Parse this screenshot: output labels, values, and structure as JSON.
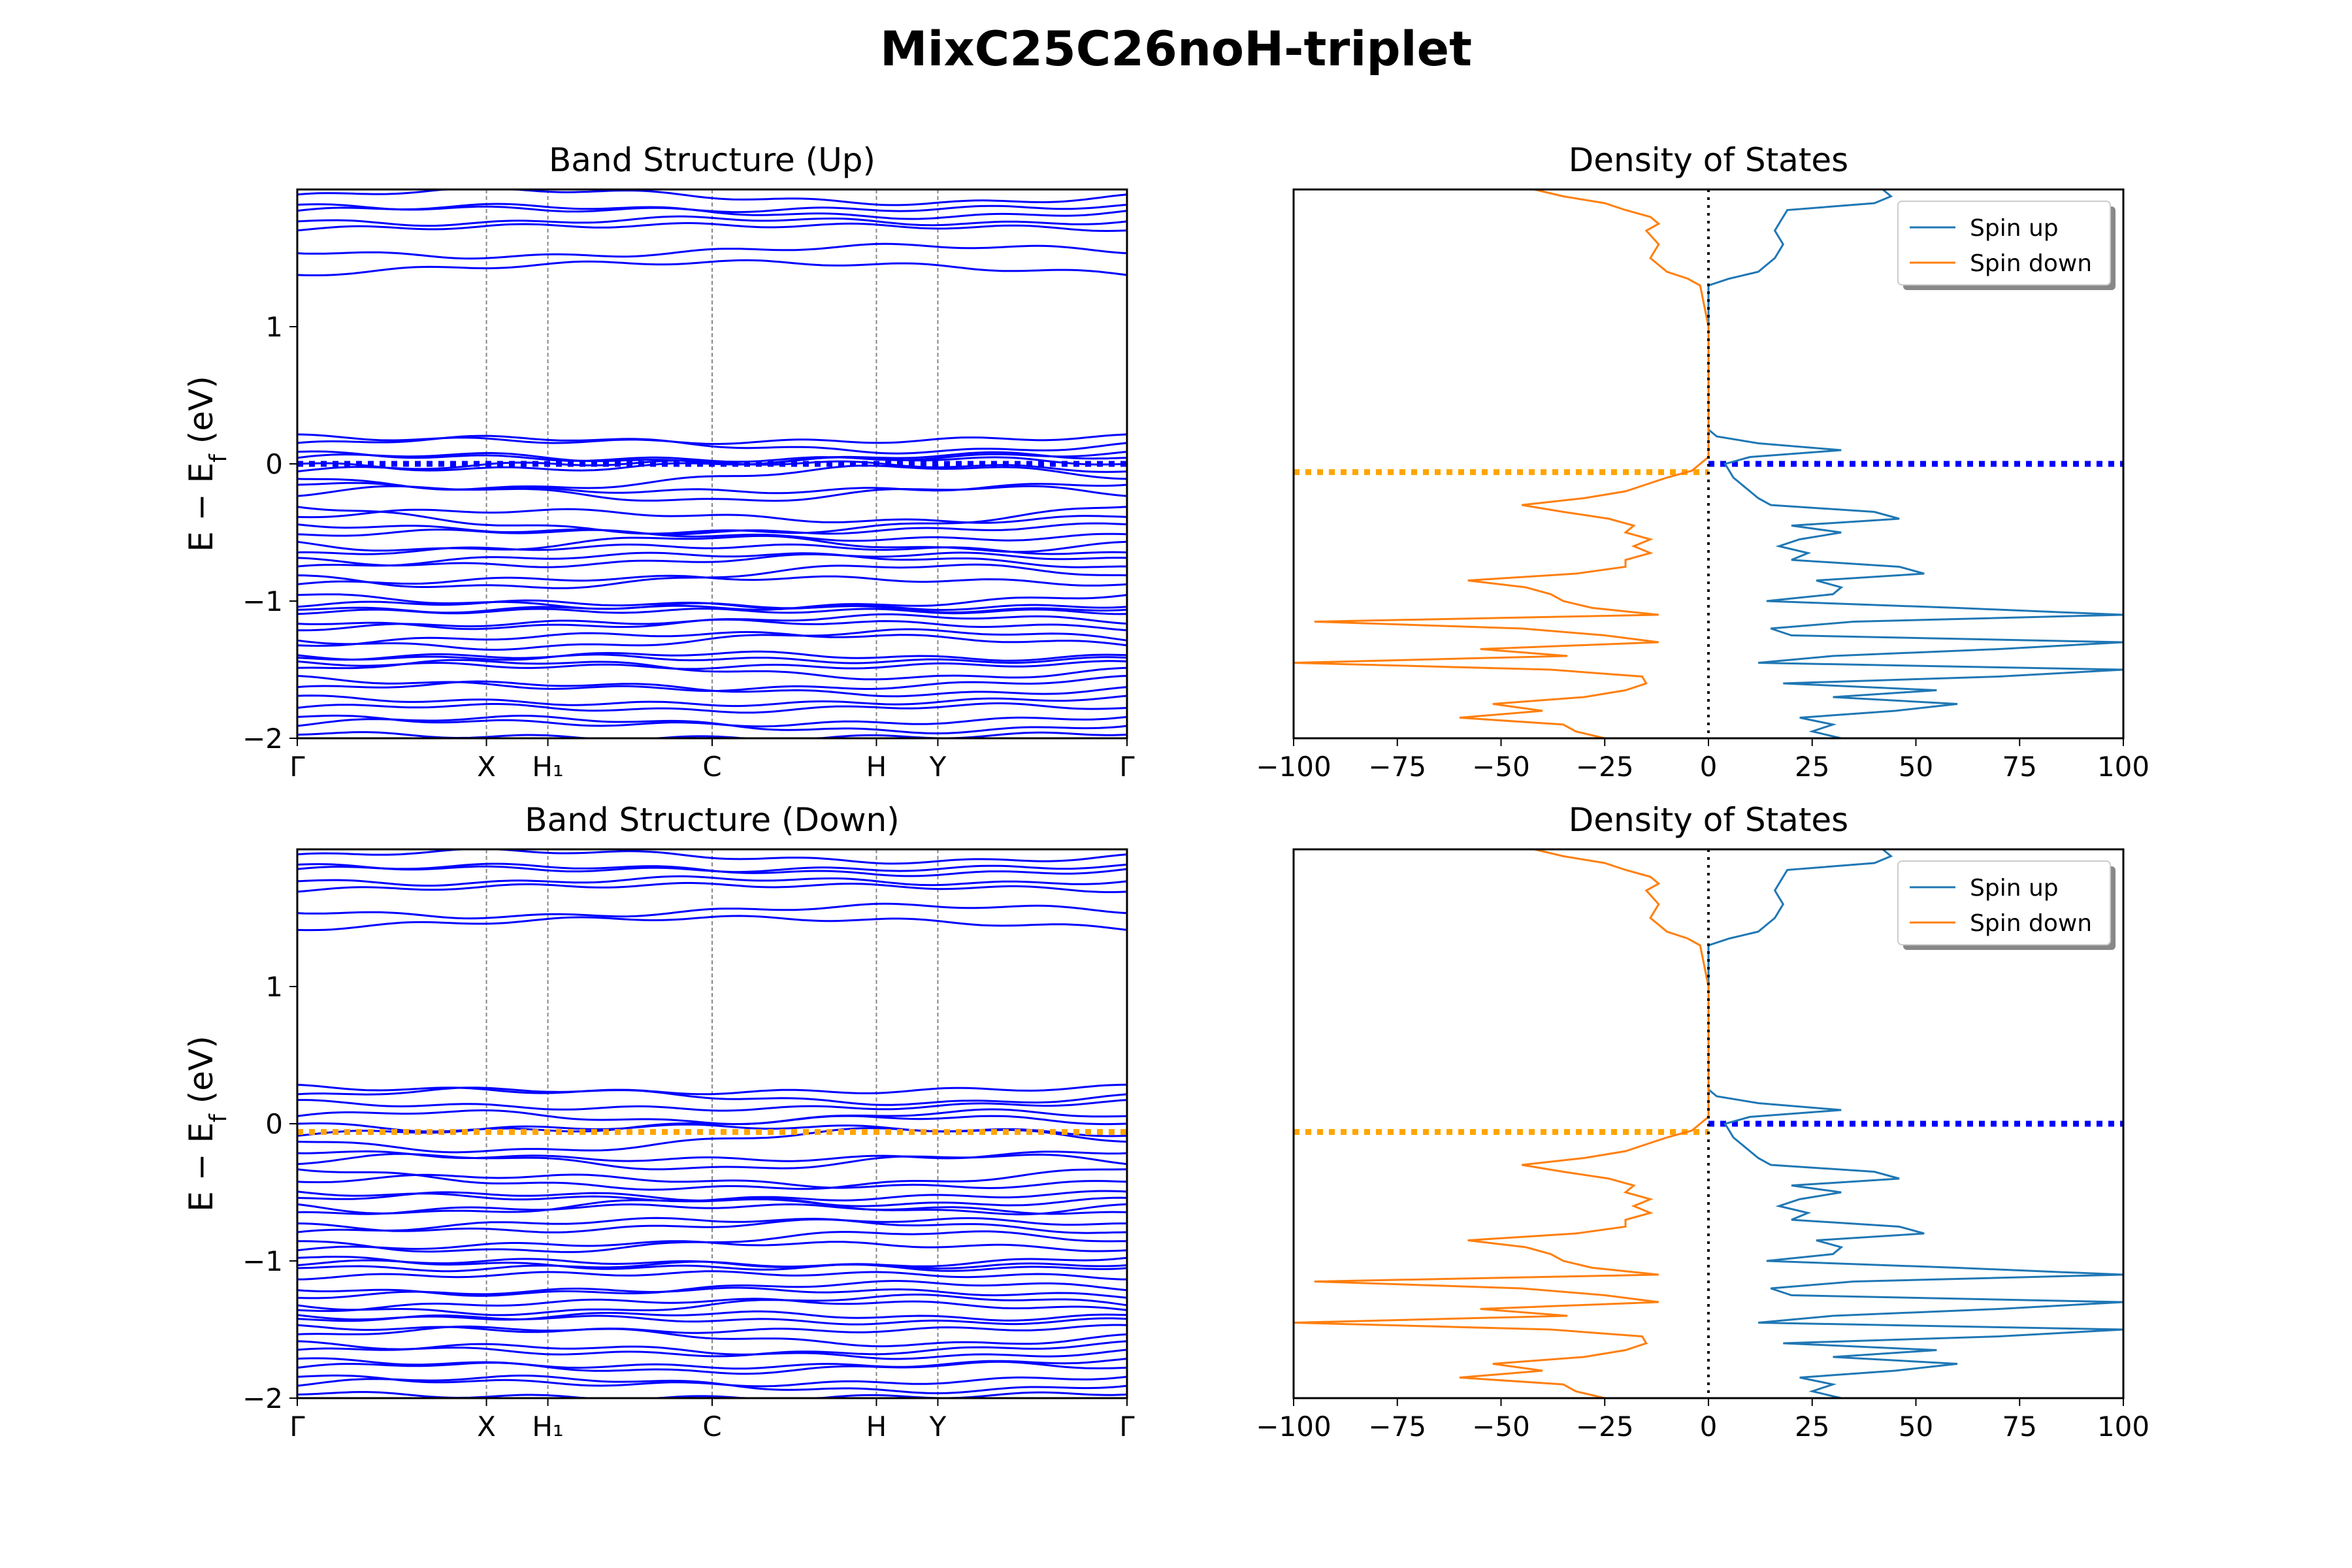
{
  "figure_title": "MixC25C26noH-triplet",
  "colors": {
    "band": "#0000ff",
    "spin_up": "#1f77b4",
    "spin_down": "#ff7f0e",
    "fermi_up": "#0000ff",
    "fermi_down": "#ffa500"
  },
  "chart_data": [
    {
      "type": "line",
      "title": "Band Structure (Up)",
      "ylabel": "E − E_f (eV)",
      "ylim": [
        -2,
        2
      ],
      "yticks": [
        "−2",
        "−1",
        "0",
        "1"
      ],
      "kpoints": [
        "Γ",
        "X",
        "H₁",
        "C",
        "H",
        "Y",
        "Γ"
      ],
      "kpoint_positions": [
        0,
        0.228,
        0.302,
        0.5,
        0.698,
        0.772,
        1
      ],
      "fermi_level": 0.0,
      "fermi_color": "blue",
      "bands": [
        {
          "e0": 1.38,
          "d": 0.09,
          "p": 1
        },
        {
          "e0": 1.55,
          "d": -0.04,
          "p": 2
        },
        {
          "e0": 1.71,
          "d": 0.03,
          "p": 1
        },
        {
          "e0": 1.77,
          "d": -0.02,
          "p": 3
        },
        {
          "e0": 1.84,
          "d": 0.04,
          "p": 2
        },
        {
          "e0": 1.88,
          "d": -0.03,
          "p": 1
        },
        {
          "e0": 1.95,
          "d": 0.05,
          "p": 2
        },
        {
          "e0": 0.2,
          "d": -0.04,
          "p": 1
        },
        {
          "e0": 0.14,
          "d": 0.05,
          "p": 2
        },
        {
          "e0": 0.08,
          "d": -0.05,
          "p": 1
        },
        {
          "e0": 0.04,
          "d": 0.03,
          "p": 3
        },
        {
          "e0": 0.0,
          "d": -0.04,
          "p": 2
        },
        {
          "e0": -0.05,
          "d": 0.06,
          "p": 1
        },
        {
          "e0": -0.1,
          "d": -0.08,
          "p": 2
        },
        {
          "e0": -0.14,
          "d": -0.06,
          "p": 1
        },
        {
          "e0": -0.22,
          "d": 0.05,
          "p": 3
        },
        {
          "e0": -0.3,
          "d": -0.2,
          "p": 1
        },
        {
          "e0": -0.38,
          "d": 0.04,
          "p": 2
        },
        {
          "e0": -0.44,
          "d": -0.06,
          "p": 1
        },
        {
          "e0": -0.52,
          "d": 0.03,
          "p": 2
        },
        {
          "e0": -0.58,
          "d": -0.05,
          "p": 3
        },
        {
          "e0": -0.66,
          "d": 0.06,
          "p": 1
        },
        {
          "e0": -0.7,
          "d": -0.04,
          "p": 2
        },
        {
          "e0": -0.76,
          "d": 0.1,
          "p": 1
        },
        {
          "e0": -0.82,
          "d": -0.08,
          "p": 2
        },
        {
          "e0": -0.88,
          "d": 0.05,
          "p": 1
        },
        {
          "e0": -0.95,
          "d": -0.1,
          "p": 1
        },
        {
          "e0": -1.03,
          "d": 0.02,
          "p": 2
        },
        {
          "e0": -1.05,
          "d": -0.02,
          "p": 3
        },
        {
          "e0": -1.08,
          "d": 0.01,
          "p": 1
        },
        {
          "e0": -1.15,
          "d": -0.04,
          "p": 2
        },
        {
          "e0": -1.2,
          "d": 0.05,
          "p": 1
        },
        {
          "e0": -1.28,
          "d": -0.06,
          "p": 2
        },
        {
          "e0": -1.32,
          "d": 0.08,
          "p": 1
        },
        {
          "e0": -1.4,
          "d": -0.02,
          "p": 3
        },
        {
          "e0": -1.42,
          "d": 0.02,
          "p": 2
        },
        {
          "e0": -1.45,
          "d": -0.03,
          "p": 1
        },
        {
          "e0": -1.5,
          "d": 0.06,
          "p": 2
        },
        {
          "e0": -1.56,
          "d": -0.08,
          "p": 1
        },
        {
          "e0": -1.64,
          "d": 0.04,
          "p": 2
        },
        {
          "e0": -1.7,
          "d": -0.05,
          "p": 1
        },
        {
          "e0": -1.78,
          "d": 0.02,
          "p": 3
        },
        {
          "e0": -1.84,
          "d": -0.06,
          "p": 1
        },
        {
          "e0": -1.9,
          "d": 0.05,
          "p": 2
        },
        {
          "e0": -1.96,
          "d": -0.04,
          "p": 1
        }
      ]
    },
    {
      "type": "line",
      "title": "Density of States",
      "xlim": [
        -100,
        100
      ],
      "ylim": [
        -2,
        2
      ],
      "xticks": [
        "−100",
        "−75",
        "−50",
        "−25",
        "0",
        "25",
        "50",
        "75",
        "100"
      ],
      "legend": {
        "location": "top-right",
        "entries": [
          "Spin up",
          "Spin down"
        ]
      },
      "fermi_up": 0.0,
      "fermi_down": -0.06,
      "series": [
        {
          "name": "Spin up",
          "energy": [
            -2.0,
            -1.95,
            -1.9,
            -1.85,
            -1.8,
            -1.75,
            -1.7,
            -1.65,
            -1.6,
            -1.55,
            -1.5,
            -1.45,
            -1.4,
            -1.35,
            -1.3,
            -1.25,
            -1.2,
            -1.15,
            -1.1,
            -1.05,
            -1.0,
            -0.95,
            -0.9,
            -0.85,
            -0.8,
            -0.75,
            -0.7,
            -0.65,
            -0.6,
            -0.55,
            -0.5,
            -0.45,
            -0.4,
            -0.35,
            -0.3,
            -0.25,
            -0.2,
            -0.15,
            -0.1,
            -0.05,
            0.0,
            0.05,
            0.1,
            0.15,
            0.2,
            0.25,
            0.3,
            0.35,
            0.4,
            0.5,
            0.7,
            1.0,
            1.3,
            1.35,
            1.4,
            1.5,
            1.6,
            1.7,
            1.75,
            1.8,
            1.85,
            1.9,
            1.95,
            2.0
          ],
          "dos": [
            32,
            25,
            30,
            22,
            45,
            60,
            30,
            55,
            18,
            70,
            100,
            12,
            30,
            70,
            100,
            20,
            15,
            35,
            100,
            60,
            14,
            30,
            32,
            26,
            52,
            46,
            20,
            24,
            17,
            22,
            32,
            20,
            46,
            40,
            15,
            12,
            10,
            8,
            6,
            5,
            4,
            10,
            32,
            12,
            2,
            0,
            0,
            0,
            0,
            0,
            0,
            0,
            0,
            5,
            12,
            16,
            18,
            16,
            17,
            18,
            19,
            40,
            44,
            42
          ]
        },
        {
          "name": "Spin down",
          "energy": [
            -2.0,
            -1.95,
            -1.9,
            -1.85,
            -1.8,
            -1.75,
            -1.7,
            -1.65,
            -1.6,
            -1.55,
            -1.5,
            -1.45,
            -1.4,
            -1.35,
            -1.3,
            -1.25,
            -1.2,
            -1.15,
            -1.1,
            -1.05,
            -1.0,
            -0.95,
            -0.9,
            -0.85,
            -0.8,
            -0.75,
            -0.7,
            -0.65,
            -0.6,
            -0.55,
            -0.5,
            -0.45,
            -0.4,
            -0.35,
            -0.3,
            -0.25,
            -0.2,
            -0.15,
            -0.1,
            -0.05,
            0.0,
            0.05,
            0.1,
            0.15,
            0.2,
            0.25,
            0.3,
            0.35,
            0.4,
            0.5,
            0.7,
            1.0,
            1.3,
            1.35,
            1.4,
            1.5,
            1.6,
            1.7,
            1.75,
            1.8,
            1.85,
            1.9,
            1.95,
            2.0
          ],
          "dos": [
            -25,
            -32,
            -35,
            -60,
            -40,
            -52,
            -30,
            -20,
            -15,
            -16,
            -38,
            -100,
            -34,
            -55,
            -12,
            -25,
            -45,
            -95,
            -12,
            -28,
            -35,
            -38,
            -44,
            -58,
            -32,
            -20,
            -20,
            -14,
            -18,
            -14,
            -20,
            -18,
            -24,
            -35,
            -45,
            -30,
            -20,
            -15,
            -10,
            -4,
            -2,
            0,
            0,
            0,
            0,
            0,
            0,
            0,
            0,
            0,
            0,
            0,
            -2,
            -5,
            -10,
            -14,
            -12,
            -15,
            -12,
            -14,
            -20,
            -25,
            -35,
            -42
          ]
        }
      ]
    },
    {
      "type": "line",
      "title": "Band Structure (Down)",
      "ylabel": "E − E_f (eV)",
      "ylim": [
        -2,
        2
      ],
      "yticks": [
        "−2",
        "−1",
        "0",
        "1"
      ],
      "kpoints": [
        "Γ",
        "X",
        "H₁",
        "C",
        "H",
        "Y",
        "Γ"
      ],
      "kpoint_positions": [
        0,
        0.228,
        0.302,
        0.5,
        0.698,
        0.772,
        1
      ],
      "fermi_level": -0.06,
      "fermi_color": "orange",
      "bands": [
        {
          "e0": 1.42,
          "d": 0.08,
          "p": 1
        },
        {
          "e0": 1.55,
          "d": -0.04,
          "p": 2
        },
        {
          "e0": 1.7,
          "d": 0.04,
          "p": 1
        },
        {
          "e0": 1.77,
          "d": -0.02,
          "p": 3
        },
        {
          "e0": 1.85,
          "d": 0.03,
          "p": 2
        },
        {
          "e0": 1.88,
          "d": -0.03,
          "p": 1
        },
        {
          "e0": 1.95,
          "d": 0.04,
          "p": 2
        },
        {
          "e0": 0.27,
          "d": -0.04,
          "p": 1
        },
        {
          "e0": 0.2,
          "d": 0.05,
          "p": 2
        },
        {
          "e0": 0.16,
          "d": -0.05,
          "p": 1
        },
        {
          "e0": 0.05,
          "d": 0.04,
          "p": 3
        },
        {
          "e0": 0.0,
          "d": -0.05,
          "p": 2
        },
        {
          "e0": -0.08,
          "d": 0.06,
          "p": 1
        },
        {
          "e0": -0.12,
          "d": -0.08,
          "p": 2
        },
        {
          "e0": -0.2,
          "d": -0.06,
          "p": 1
        },
        {
          "e0": -0.28,
          "d": 0.05,
          "p": 3
        },
        {
          "e0": -0.32,
          "d": -0.15,
          "p": 1
        },
        {
          "e0": -0.42,
          "d": 0.04,
          "p": 2
        },
        {
          "e0": -0.5,
          "d": -0.05,
          "p": 1
        },
        {
          "e0": -0.55,
          "d": 0.04,
          "p": 2
        },
        {
          "e0": -0.6,
          "d": -0.05,
          "p": 3
        },
        {
          "e0": -0.66,
          "d": 0.06,
          "p": 1
        },
        {
          "e0": -0.74,
          "d": -0.04,
          "p": 2
        },
        {
          "e0": -0.8,
          "d": 0.1,
          "p": 1
        },
        {
          "e0": -0.86,
          "d": -0.07,
          "p": 2
        },
        {
          "e0": -0.92,
          "d": 0.05,
          "p": 1
        },
        {
          "e0": -0.97,
          "d": -0.08,
          "p": 1
        },
        {
          "e0": -1.02,
          "d": 0.02,
          "p": 2
        },
        {
          "e0": -1.04,
          "d": -0.02,
          "p": 3
        },
        {
          "e0": -1.12,
          "d": 0.03,
          "p": 1
        },
        {
          "e0": -1.2,
          "d": -0.04,
          "p": 2
        },
        {
          "e0": -1.26,
          "d": 0.05,
          "p": 1
        },
        {
          "e0": -1.32,
          "d": -0.06,
          "p": 2
        },
        {
          "e0": -1.36,
          "d": 0.07,
          "p": 1
        },
        {
          "e0": -1.4,
          "d": -0.02,
          "p": 3
        },
        {
          "e0": -1.43,
          "d": 0.02,
          "p": 2
        },
        {
          "e0": -1.48,
          "d": -0.03,
          "p": 1
        },
        {
          "e0": -1.55,
          "d": 0.06,
          "p": 2
        },
        {
          "e0": -1.6,
          "d": -0.08,
          "p": 1
        },
        {
          "e0": -1.66,
          "d": 0.04,
          "p": 2
        },
        {
          "e0": -1.72,
          "d": -0.05,
          "p": 1
        },
        {
          "e0": -1.78,
          "d": 0.03,
          "p": 3
        },
        {
          "e0": -1.84,
          "d": -0.06,
          "p": 1
        },
        {
          "e0": -1.9,
          "d": 0.05,
          "p": 2
        },
        {
          "e0": -1.96,
          "d": -0.04,
          "p": 1
        }
      ]
    },
    {
      "type": "line",
      "title": "Density of States",
      "xlim": [
        -100,
        100
      ],
      "ylim": [
        -2,
        2
      ],
      "xticks": [
        "−100",
        "−75",
        "−50",
        "−25",
        "0",
        "25",
        "50",
        "75",
        "100"
      ],
      "legend": {
        "location": "top-right",
        "entries": [
          "Spin up",
          "Spin down"
        ]
      },
      "fermi_up": 0.0,
      "fermi_down": -0.06,
      "series": [
        {
          "name": "Spin up",
          "energy": [
            -2.0,
            -1.95,
            -1.9,
            -1.85,
            -1.8,
            -1.75,
            -1.7,
            -1.65,
            -1.6,
            -1.55,
            -1.5,
            -1.45,
            -1.4,
            -1.35,
            -1.3,
            -1.25,
            -1.2,
            -1.15,
            -1.1,
            -1.05,
            -1.0,
            -0.95,
            -0.9,
            -0.85,
            -0.8,
            -0.75,
            -0.7,
            -0.65,
            -0.6,
            -0.55,
            -0.5,
            -0.45,
            -0.4,
            -0.35,
            -0.3,
            -0.25,
            -0.2,
            -0.15,
            -0.1,
            -0.05,
            0.0,
            0.05,
            0.1,
            0.15,
            0.2,
            0.25,
            0.3,
            0.35,
            0.4,
            0.5,
            0.7,
            1.0,
            1.3,
            1.35,
            1.4,
            1.5,
            1.6,
            1.7,
            1.75,
            1.8,
            1.85,
            1.9,
            1.95,
            2.0
          ],
          "dos": [
            32,
            25,
            30,
            22,
            45,
            60,
            30,
            55,
            18,
            70,
            100,
            12,
            30,
            70,
            100,
            20,
            15,
            35,
            100,
            60,
            14,
            30,
            32,
            26,
            52,
            46,
            20,
            24,
            17,
            22,
            32,
            20,
            46,
            40,
            15,
            12,
            10,
            8,
            6,
            5,
            4,
            10,
            32,
            12,
            2,
            0,
            0,
            0,
            0,
            0,
            0,
            0,
            0,
            5,
            12,
            16,
            18,
            16,
            17,
            18,
            19,
            40,
            44,
            42
          ]
        },
        {
          "name": "Spin down",
          "energy": [
            -2.0,
            -1.95,
            -1.9,
            -1.85,
            -1.8,
            -1.75,
            -1.7,
            -1.65,
            -1.6,
            -1.55,
            -1.5,
            -1.45,
            -1.4,
            -1.35,
            -1.3,
            -1.25,
            -1.2,
            -1.15,
            -1.1,
            -1.05,
            -1.0,
            -0.95,
            -0.9,
            -0.85,
            -0.8,
            -0.75,
            -0.7,
            -0.65,
            -0.6,
            -0.55,
            -0.5,
            -0.45,
            -0.4,
            -0.35,
            -0.3,
            -0.25,
            -0.2,
            -0.15,
            -0.1,
            -0.05,
            0.0,
            0.05,
            0.1,
            0.15,
            0.2,
            0.25,
            0.3,
            0.35,
            0.4,
            0.5,
            0.7,
            1.0,
            1.3,
            1.35,
            1.4,
            1.5,
            1.6,
            1.7,
            1.75,
            1.8,
            1.85,
            1.9,
            1.95,
            2.0
          ],
          "dos": [
            -25,
            -32,
            -35,
            -60,
            -40,
            -52,
            -30,
            -20,
            -15,
            -16,
            -38,
            -100,
            -34,
            -55,
            -12,
            -25,
            -45,
            -95,
            -12,
            -28,
            -35,
            -38,
            -44,
            -58,
            -32,
            -20,
            -20,
            -14,
            -18,
            -14,
            -20,
            -18,
            -24,
            -35,
            -45,
            -30,
            -20,
            -15,
            -10,
            -4,
            -2,
            0,
            0,
            0,
            0,
            0,
            0,
            0,
            0,
            0,
            0,
            0,
            -2,
            -5,
            -10,
            -14,
            -12,
            -15,
            -12,
            -14,
            -20,
            -25,
            -35,
            -42
          ]
        }
      ]
    }
  ]
}
